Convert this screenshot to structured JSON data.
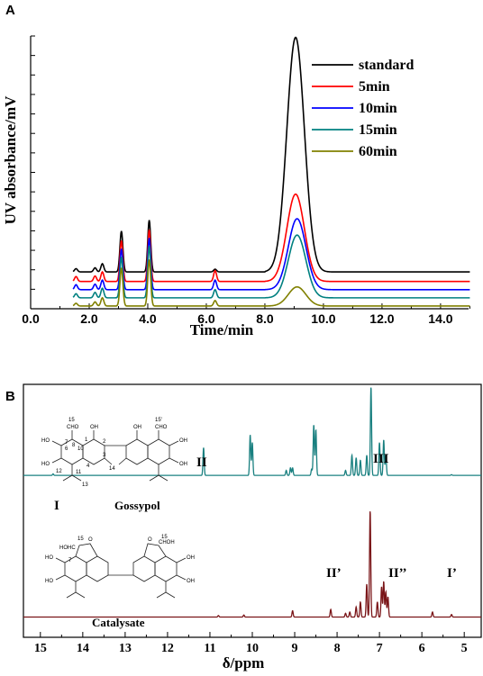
{
  "chart_data": [
    {
      "type": "line",
      "panel_label": "A",
      "xlabel": "Time/min",
      "ylabel": "UV absorbance/mV",
      "xlim": [
        0,
        15
      ],
      "x_ticks": [
        "0.0",
        "2.0",
        "4.0",
        "6.0",
        "8.0",
        "10.0",
        "12.0",
        "14.0"
      ],
      "x_tick_values": [
        0,
        2,
        4,
        6,
        8,
        10,
        12,
        14
      ],
      "y_tick_labels": "none",
      "legend_position": "top-right",
      "colors": [
        "#000000",
        "#ff0000",
        "#0000ff",
        "#008080",
        "#808000"
      ],
      "series": [
        {
          "name": "standard",
          "baseline": 0.135,
          "peaks": [
            [
              1.55,
              0.012
            ],
            [
              2.2,
              0.015
            ],
            [
              2.45,
              0.03
            ],
            [
              3.1,
              0.15
            ],
            [
              4.05,
              0.19
            ],
            [
              6.3,
              0.01
            ],
            [
              9.05,
              0.86
            ]
          ]
        },
        {
          "name": "5min",
          "baseline": 0.1,
          "peaks": [
            [
              1.55,
              0.018
            ],
            [
              2.2,
              0.02
            ],
            [
              2.45,
              0.035
            ],
            [
              3.1,
              0.15
            ],
            [
              4.05,
              0.19
            ],
            [
              6.3,
              0.04
            ],
            [
              9.05,
              0.32
            ]
          ]
        },
        {
          "name": "10min",
          "baseline": 0.07,
          "peaks": [
            [
              1.55,
              0.018
            ],
            [
              2.2,
              0.02
            ],
            [
              2.45,
              0.035
            ],
            [
              3.1,
              0.15
            ],
            [
              4.05,
              0.19
            ],
            [
              6.3,
              0.035
            ],
            [
              9.1,
              0.26
            ]
          ]
        },
        {
          "name": "15min",
          "baseline": 0.04,
          "peaks": [
            [
              1.55,
              0.015
            ],
            [
              2.2,
              0.02
            ],
            [
              2.45,
              0.035
            ],
            [
              3.1,
              0.15
            ],
            [
              4.05,
              0.19
            ],
            [
              6.3,
              0.03
            ],
            [
              9.1,
              0.23
            ]
          ]
        },
        {
          "name": "60min",
          "baseline": 0.01,
          "peaks": [
            [
              1.55,
              0.01
            ],
            [
              2.2,
              0.015
            ],
            [
              2.45,
              0.03
            ],
            [
              3.1,
              0.14
            ],
            [
              4.05,
              0.17
            ],
            [
              6.3,
              0.02
            ],
            [
              9.1,
              0.07
            ]
          ]
        }
      ]
    },
    {
      "type": "line",
      "panel_label": "B",
      "xlabel": "δ/ppm",
      "xlim": [
        15.4,
        4.6
      ],
      "x_reversed": true,
      "x_ticks": [
        "15",
        "14",
        "13",
        "12",
        "11",
        "10",
        "9",
        "8",
        "7",
        "6",
        "5"
      ],
      "x_tick_values": [
        15,
        14,
        13,
        12,
        11,
        10,
        9,
        8,
        7,
        6,
        5
      ],
      "y_tick_labels": "none",
      "colors": [
        "#1a8080",
        "#7a1518"
      ],
      "compounds": {
        "top": "Gossypol",
        "bottom": "Catalysate"
      },
      "peak_labels": {
        "top": [
          "I",
          "II",
          "III"
        ],
        "bottom": [
          "II’",
          "II’’",
          "I’"
        ]
      },
      "series": [
        {
          "name": "Gossypol",
          "baseline": 0.64,
          "peaks": [
            [
              14.7,
              0.006
            ],
            [
              11.15,
              0.11
            ],
            [
              10.05,
              0.16
            ],
            [
              10.0,
              0.13
            ],
            [
              9.2,
              0.02
            ],
            [
              9.1,
              0.03
            ],
            [
              9.05,
              0.03
            ],
            [
              8.6,
              0.025
            ],
            [
              8.55,
              0.2
            ],
            [
              8.5,
              0.18
            ],
            [
              7.8,
              0.02
            ],
            [
              7.65,
              0.08
            ],
            [
              7.55,
              0.07
            ],
            [
              7.45,
              0.06
            ],
            [
              7.3,
              0.08
            ],
            [
              7.2,
              0.35
            ],
            [
              7.0,
              0.13
            ],
            [
              6.9,
              0.14
            ],
            [
              6.85,
              0.08
            ],
            [
              5.3,
              0.003
            ]
          ]
        },
        {
          "name": "Catalysate",
          "baseline": 0.08,
          "peaks": [
            [
              10.8,
              0.006
            ],
            [
              10.2,
              0.008
            ],
            [
              9.05,
              0.025
            ],
            [
              8.15,
              0.03
            ],
            [
              7.8,
              0.015
            ],
            [
              7.7,
              0.02
            ],
            [
              7.55,
              0.04
            ],
            [
              7.45,
              0.06
            ],
            [
              7.3,
              0.13
            ],
            [
              7.22,
              0.42
            ],
            [
              7.05,
              0.06
            ],
            [
              6.95,
              0.12
            ],
            [
              6.9,
              0.14
            ],
            [
              6.85,
              0.1
            ],
            [
              6.8,
              0.08
            ],
            [
              5.75,
              0.02
            ],
            [
              5.3,
              0.01
            ]
          ]
        }
      ]
    }
  ]
}
